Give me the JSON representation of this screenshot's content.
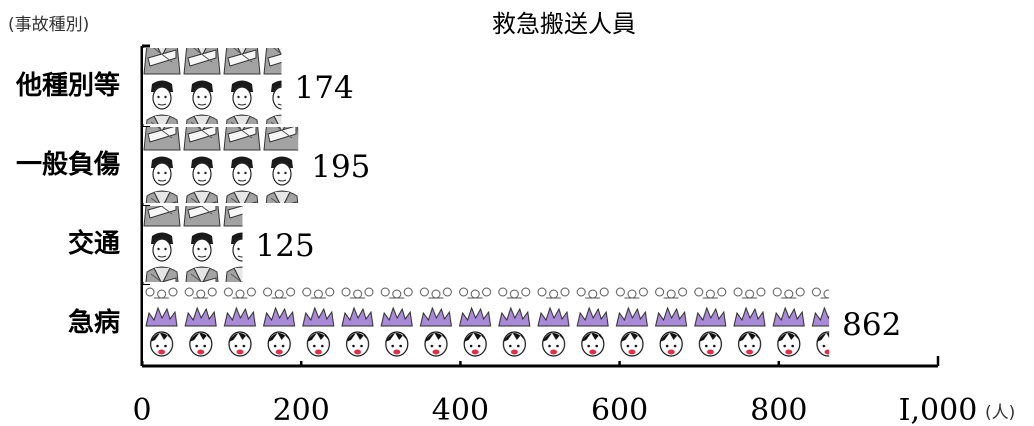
{
  "chart_data": {
    "type": "bar",
    "orientation": "horizontal",
    "title": "救急搬送人員",
    "ylabel": "(事故種別)",
    "xunit": "(人)",
    "categories": [
      "他種別等",
      "一般負傷",
      "交通",
      "急病"
    ],
    "values": [
      174,
      195,
      125,
      862
    ],
    "xticks": [
      0,
      200,
      400,
      600,
      800,
      1000
    ],
    "xtick_labels": [
      "0",
      "200",
      "400",
      "600",
      "800",
      "I,000"
    ],
    "xlim": [
      0,
      1000
    ],
    "grid": false,
    "bar_style": "pictograph",
    "pictograph_colors": {
      "injury": "#9a9a9a",
      "illness": "#a98ad6",
      "illness_face": "#d9334a"
    }
  }
}
